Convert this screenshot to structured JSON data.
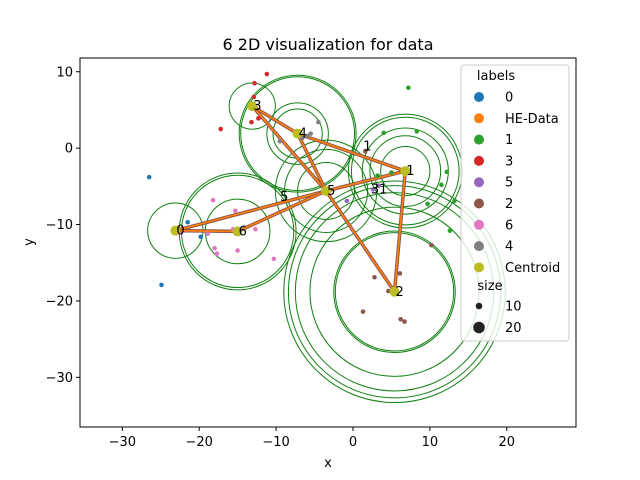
{
  "chart_data": {
    "type": "scatter",
    "title": "6 2D visualization for data",
    "xlabel": "x",
    "ylabel": "y",
    "xlim": [
      -35.5,
      29
    ],
    "ylim": [
      -36.5,
      11.8
    ],
    "xticks": [
      -30,
      -20,
      -10,
      0,
      10,
      20
    ],
    "yticks": [
      -30,
      -20,
      -10,
      0,
      10
    ],
    "grid": false,
    "legend": {
      "placement": "top-right",
      "title": "labels",
      "entries": [
        {
          "label": "0",
          "color": "#1f77b4"
        },
        {
          "label": "HE-Data",
          "color": "#ff7f0e"
        },
        {
          "label": "1",
          "color": "#2ca02c"
        },
        {
          "label": "3",
          "color": "#d62728"
        },
        {
          "label": "5",
          "color": "#9467bd"
        },
        {
          "label": "2",
          "color": "#8c564b"
        },
        {
          "label": "6",
          "color": "#e377c2"
        },
        {
          "label": "4",
          "color": "#7f7f7f"
        },
        {
          "label": "Centroid",
          "color": "#bcbd22"
        }
      ],
      "size_title": "size",
      "size_entries": [
        {
          "label": "10",
          "size": 10
        },
        {
          "label": "20",
          "size": 20
        }
      ]
    },
    "points": [
      {
        "label": "0",
        "x": -26.5,
        "y": -3.8
      },
      {
        "label": "0",
        "x": -24.9,
        "y": -17.9
      },
      {
        "label": "0",
        "x": -21.5,
        "y": -9.7
      },
      {
        "label": "0",
        "x": -19.8,
        "y": -11.6
      },
      {
        "label": "0",
        "x": -3.5,
        "y": -5.5
      },
      {
        "label": "1",
        "x": 7.2,
        "y": 7.9
      },
      {
        "label": "1",
        "x": 4.0,
        "y": 2.0
      },
      {
        "label": "1",
        "x": 8.3,
        "y": 2.2
      },
      {
        "label": "1",
        "x": 11.5,
        "y": -4.8
      },
      {
        "label": "1",
        "x": 12.2,
        "y": -3.1
      },
      {
        "label": "1",
        "x": 13.2,
        "y": -6.9
      },
      {
        "label": "1",
        "x": 12.6,
        "y": -10.8
      },
      {
        "label": "1",
        "x": 9.7,
        "y": -7.3
      },
      {
        "label": "1",
        "x": 5.0,
        "y": -3.2
      },
      {
        "label": "1",
        "x": 3.2,
        "y": -3.6
      },
      {
        "label": "3",
        "x": -11.2,
        "y": 9.7
      },
      {
        "label": "3",
        "x": -12.8,
        "y": 8.5
      },
      {
        "label": "3",
        "x": -12.9,
        "y": 6.7
      },
      {
        "label": "3",
        "x": -17.2,
        "y": 2.5
      },
      {
        "label": "3",
        "x": -13.2,
        "y": 3.4
      },
      {
        "label": "3",
        "x": -12.3,
        "y": 3.9
      },
      {
        "label": "5",
        "x": -0.8,
        "y": -6.9
      },
      {
        "label": "5",
        "x": 2.6,
        "y": -5.4
      },
      {
        "label": "5",
        "x": 3.3,
        "y": -4.9
      },
      {
        "label": "2",
        "x": 1.3,
        "y": -21.4
      },
      {
        "label": "2",
        "x": 2.8,
        "y": -16.9
      },
      {
        "label": "2",
        "x": 4.6,
        "y": -18.7
      },
      {
        "label": "2",
        "x": 6.1,
        "y": -16.4
      },
      {
        "label": "2",
        "x": 6.2,
        "y": -22.4
      },
      {
        "label": "2",
        "x": 6.7,
        "y": -22.7
      },
      {
        "label": "2",
        "x": 10.2,
        "y": -12.7
      },
      {
        "label": "2",
        "x": 1.6,
        "y": -0.4
      },
      {
        "label": "6",
        "x": -18.2,
        "y": -6.8
      },
      {
        "label": "6",
        "x": -15.3,
        "y": -8.2
      },
      {
        "label": "6",
        "x": -18.9,
        "y": -11.2
      },
      {
        "label": "6",
        "x": -18.0,
        "y": -13.1
      },
      {
        "label": "6",
        "x": -17.7,
        "y": -13.8
      },
      {
        "label": "6",
        "x": -15.6,
        "y": -10.6
      },
      {
        "label": "6",
        "x": -15.0,
        "y": -13.4
      },
      {
        "label": "6",
        "x": -12.7,
        "y": -10.6
      },
      {
        "label": "6",
        "x": -10.3,
        "y": -14.5
      },
      {
        "label": "4",
        "x": -4.5,
        "y": 3.4
      },
      {
        "label": "4",
        "x": -5.9,
        "y": 1.6
      },
      {
        "label": "4",
        "x": -5.5,
        "y": 1.9
      },
      {
        "label": "4",
        "x": -6.6,
        "y": 1.3
      },
      {
        "label": "4",
        "x": -9.5,
        "y": 0.9
      }
    ],
    "centroids": [
      {
        "label": "0",
        "x": -23.1,
        "y": -10.8
      },
      {
        "label": "1",
        "x": 6.8,
        "y": -3.0
      },
      {
        "label": "2",
        "x": 5.4,
        "y": -18.8
      },
      {
        "label": "3",
        "x": -13.1,
        "y": 5.5
      },
      {
        "label": "4",
        "x": -7.2,
        "y": 1.9
      },
      {
        "label": "5",
        "x": -3.5,
        "y": -5.6
      },
      {
        "label": "6",
        "x": -15.0,
        "y": -10.9
      }
    ],
    "centroid_labels": [
      {
        "text": "0",
        "x": -23.1,
        "y": -10.8
      },
      {
        "text": "1",
        "x": 1.2,
        "y": 0.2
      },
      {
        "text": "1",
        "x": 6.8,
        "y": -3.0
      },
      {
        "text": "2",
        "x": 5.4,
        "y": -18.8
      },
      {
        "text": "3",
        "x": -13.1,
        "y": 5.5
      },
      {
        "text": "4",
        "x": -7.2,
        "y": 1.9
      },
      {
        "text": "5",
        "x": -3.5,
        "y": -5.6
      },
      {
        "text": "5",
        "x": -9.6,
        "y": -6.4
      },
      {
        "text": "6",
        "x": -15.0,
        "y": -10.9
      },
      {
        "text": "31",
        "x": 2.2,
        "y": -5.4
      }
    ],
    "circles": [
      {
        "cx": -23.1,
        "cy": -10.8,
        "r": 3.6
      },
      {
        "cx": -15.0,
        "cy": -10.9,
        "r": 4.2
      },
      {
        "cx": -15.0,
        "cy": -10.9,
        "r": 7.3
      },
      {
        "cx": -15.0,
        "cy": -10.9,
        "r": 7.6
      },
      {
        "cx": -13.1,
        "cy": 5.5,
        "r": 3.0
      },
      {
        "cx": -7.2,
        "cy": 1.9,
        "r": 3.2
      },
      {
        "cx": -7.2,
        "cy": 1.9,
        "r": 4.0
      },
      {
        "cx": -7.2,
        "cy": 1.9,
        "r": 7.4
      },
      {
        "cx": -7.2,
        "cy": 1.9,
        "r": 7.6
      },
      {
        "cx": -3.5,
        "cy": -5.6,
        "r": 3.7
      },
      {
        "cx": -3.5,
        "cy": -5.6,
        "r": 5.4
      },
      {
        "cx": -3.5,
        "cy": -5.6,
        "r": 6.6
      },
      {
        "cx": 6.8,
        "cy": -3.0,
        "r": 3.2
      },
      {
        "cx": 6.8,
        "cy": -3.0,
        "r": 4.6
      },
      {
        "cx": 6.8,
        "cy": -3.0,
        "r": 5.6
      },
      {
        "cx": 6.8,
        "cy": -3.0,
        "r": 7.0
      },
      {
        "cx": 6.8,
        "cy": -3.0,
        "r": 7.4
      },
      {
        "cx": 5.4,
        "cy": -18.8,
        "r": 7.7
      },
      {
        "cx": 5.4,
        "cy": -18.8,
        "r": 7.9
      },
      {
        "cx": 5.4,
        "cy": -18.8,
        "r": 11.0
      },
      {
        "cx": 5.4,
        "cy": -18.8,
        "r": 12.9
      },
      {
        "cx": 5.4,
        "cy": -18.8,
        "r": 13.8
      },
      {
        "cx": 5.4,
        "cy": -18.8,
        "r": 14.4
      }
    ],
    "he_lines": [
      {
        "from": "0",
        "to": "5"
      },
      {
        "from": "0",
        "to": "6"
      },
      {
        "from": "6",
        "to": "5"
      },
      {
        "from": "3",
        "to": "5"
      },
      {
        "from": "3",
        "to": "4"
      },
      {
        "from": "4",
        "to": "5"
      },
      {
        "from": "5",
        "to": "1"
      },
      {
        "from": "4",
        "to": "1"
      },
      {
        "from": "5",
        "to": "2"
      },
      {
        "from": "1",
        "to": "2"
      }
    ]
  }
}
